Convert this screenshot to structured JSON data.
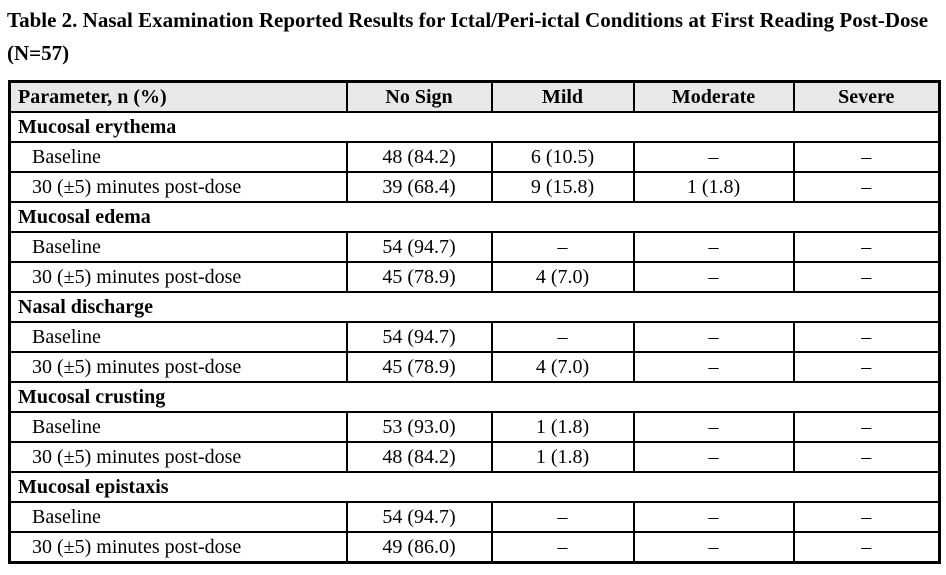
{
  "title": "Table 2. Nasal Examination Reported Results for Ictal/Peri-ictal Conditions at First Reading Post-Dose (N=57)",
  "table": {
    "columns": [
      "Parameter, n (%)",
      "No Sign",
      "Mild",
      "Moderate",
      "Severe"
    ],
    "empty_value_symbol": "–",
    "sections": [
      {
        "name": "Mucosal erythema",
        "rows": [
          {
            "label": "Baseline",
            "values": [
              "48 (84.2)",
              "6 (10.5)",
              "–",
              "–"
            ]
          },
          {
            "label": "30 (±5) minutes post-dose",
            "values": [
              "39 (68.4)",
              "9 (15.8)",
              "1 (1.8)",
              "–"
            ]
          }
        ]
      },
      {
        "name": "Mucosal edema",
        "rows": [
          {
            "label": "Baseline",
            "values": [
              "54 (94.7)",
              "–",
              "–",
              "–"
            ]
          },
          {
            "label": "30 (±5) minutes post-dose",
            "values": [
              "45 (78.9)",
              "4 (7.0)",
              "–",
              "–"
            ]
          }
        ]
      },
      {
        "name": "Nasal discharge",
        "rows": [
          {
            "label": "Baseline",
            "values": [
              "54 (94.7)",
              "–",
              "–",
              "–"
            ]
          },
          {
            "label": "30 (±5) minutes post-dose",
            "values": [
              "45 (78.9)",
              "4 (7.0)",
              "–",
              "–"
            ]
          }
        ]
      },
      {
        "name": "Mucosal crusting",
        "rows": [
          {
            "label": "Baseline",
            "values": [
              "53 (93.0)",
              "1 (1.8)",
              "–",
              "–"
            ]
          },
          {
            "label": "30 (±5) minutes post-dose",
            "values": [
              "48 (84.2)",
              "1 (1.8)",
              "–",
              "–"
            ]
          }
        ]
      },
      {
        "name": "Mucosal epistaxis",
        "rows": [
          {
            "label": "Baseline",
            "values": [
              "54 (94.7)",
              "–",
              "–",
              "–"
            ]
          },
          {
            "label": "30 (±5) minutes post-dose",
            "values": [
              "49 (86.0)",
              "–",
              "–",
              "–"
            ]
          }
        ]
      }
    ]
  },
  "colors": {
    "header_row_bg": "#e8e8e8",
    "border": "#000000",
    "page_bg": "#ffffff",
    "text": "#000000"
  }
}
